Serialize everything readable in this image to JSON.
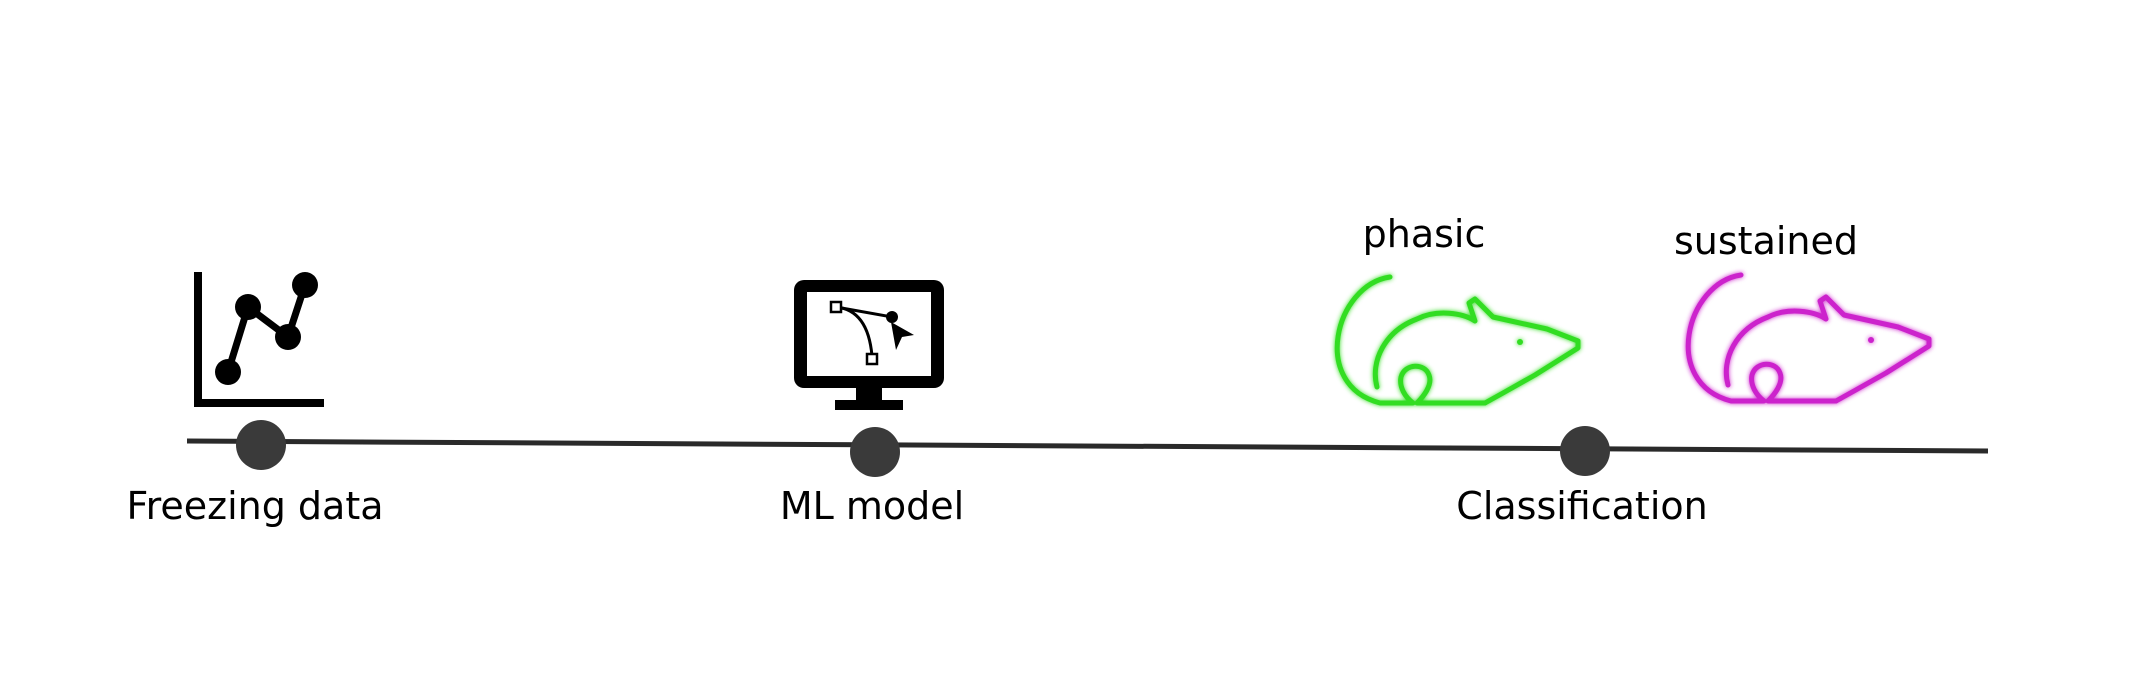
{
  "steps": [
    {
      "label": "Freezing data",
      "icon": "line-chart-icon"
    },
    {
      "label": "ML model",
      "icon": "monitor-bezier-icon"
    },
    {
      "label": "Classification",
      "icon": "mouse-icons"
    }
  ],
  "classes": [
    {
      "label": "phasic",
      "color": "#33dd22",
      "icon": "mouse-icon"
    },
    {
      "label": "sustained",
      "color": "#cc22cc",
      "icon": "mouse-icon"
    }
  ],
  "colors": {
    "timeline": "#2a2a2a",
    "node": "#3a3a3a",
    "icon": "#000000"
  }
}
